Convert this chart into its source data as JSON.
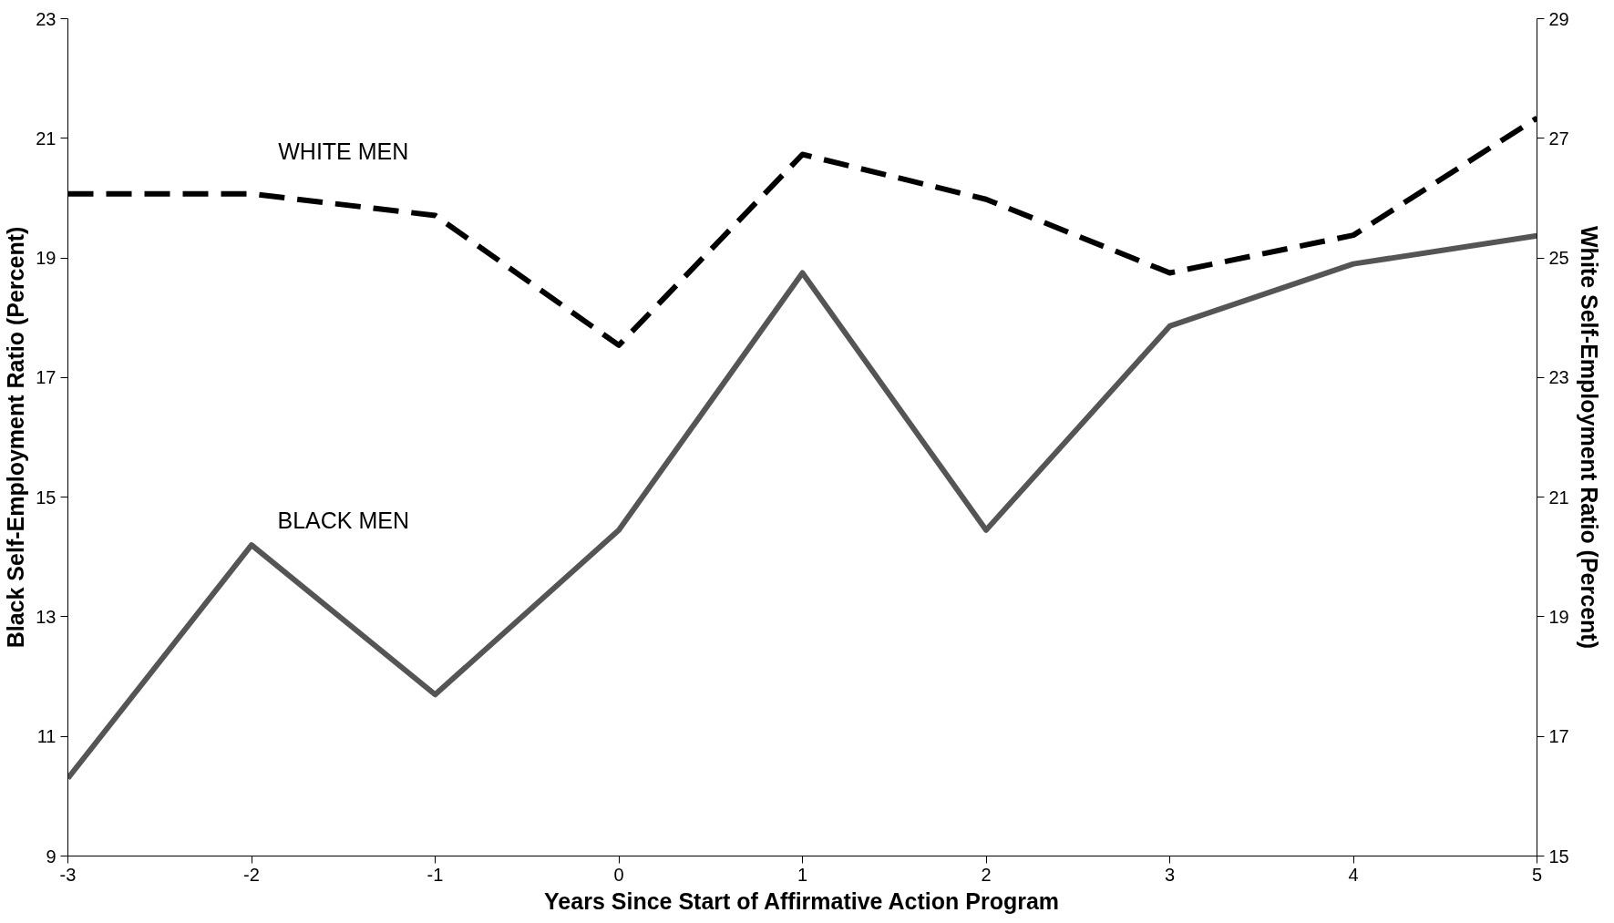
{
  "chart_data": {
    "type": "line",
    "xlabel": "Years Since Start of Affirmative Action Program",
    "ylabel": "Black Self-Employment Ratio (Percent)",
    "y2label": "White Self-Employment Ratio (Percent)",
    "x": [
      -3,
      -2,
      -1,
      0,
      1,
      2,
      3,
      4,
      5
    ],
    "xlim": [
      -3,
      5
    ],
    "xticks": [
      -3,
      -2,
      -1,
      0,
      1,
      2,
      3,
      4,
      5
    ],
    "ylim": [
      9,
      23
    ],
    "yticks": [
      9,
      11,
      13,
      15,
      17,
      19,
      21,
      23
    ],
    "y2lim": [
      15,
      29
    ],
    "y2ticks": [
      15,
      17,
      19,
      21,
      23,
      25,
      27,
      29
    ],
    "grid": false,
    "marker": "none",
    "series": [
      {
        "name": "WHITE MEN",
        "color": "#000000",
        "axis": "y2",
        "line_style": "dashed",
        "values": [
          26.07,
          26.07,
          25.71,
          23.54,
          26.73,
          25.98,
          24.75,
          25.38,
          27.34
        ]
      },
      {
        "name": "BLACK MEN",
        "color": "#555555",
        "line_style": "solid",
        "values": [
          10.3,
          14.2,
          11.7,
          14.45,
          18.75,
          14.45,
          17.86,
          18.9,
          19.37
        ]
      }
    ]
  }
}
